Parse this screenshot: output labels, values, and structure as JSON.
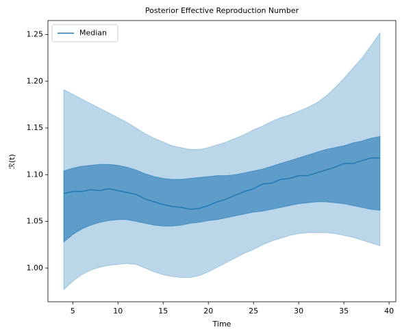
{
  "chart_data": {
    "type": "line",
    "title": "Posterior Effective Reproduction Number",
    "xlabel": "Time",
    "ylabel": "ℛ(t)",
    "x": [
      4,
      5,
      6,
      7,
      8,
      9,
      10,
      11,
      12,
      13,
      14,
      15,
      16,
      17,
      18,
      19,
      20,
      21,
      22,
      23,
      24,
      25,
      26,
      27,
      28,
      29,
      30,
      31,
      32,
      33,
      34,
      35,
      36,
      37,
      38,
      39
    ],
    "series": [
      {
        "name": "Median",
        "color": "#1f77b4",
        "values": [
          1.08,
          1.082,
          1.082,
          1.084,
          1.083,
          1.085,
          1.083,
          1.081,
          1.079,
          1.074,
          1.071,
          1.068,
          1.066,
          1.065,
          1.063,
          1.064,
          1.067,
          1.071,
          1.074,
          1.078,
          1.082,
          1.085,
          1.09,
          1.091,
          1.095,
          1.096,
          1.099,
          1.099,
          1.102,
          1.105,
          1.108,
          1.112,
          1.112,
          1.115,
          1.118,
          1.118
        ]
      }
    ],
    "bands": [
      {
        "color": "#1f77b4",
        "opacity": 0.3,
        "upper": [
          1.191,
          1.186,
          1.181,
          1.176,
          1.171,
          1.166,
          1.161,
          1.156,
          1.15,
          1.144,
          1.139,
          1.135,
          1.131,
          1.129,
          1.127,
          1.127,
          1.129,
          1.132,
          1.135,
          1.139,
          1.143,
          1.148,
          1.152,
          1.157,
          1.161,
          1.164,
          1.168,
          1.172,
          1.177,
          1.184,
          1.193,
          1.203,
          1.214,
          1.225,
          1.238,
          1.252
        ],
        "lower": [
          0.977,
          0.986,
          0.993,
          0.998,
          1.001,
          1.003,
          1.004,
          1.005,
          1.004,
          1.0,
          0.996,
          0.993,
          0.991,
          0.99,
          0.99,
          0.992,
          0.996,
          1.001,
          1.006,
          1.011,
          1.016,
          1.02,
          1.025,
          1.029,
          1.032,
          1.035,
          1.037,
          1.038,
          1.038,
          1.038,
          1.037,
          1.035,
          1.033,
          1.03,
          1.027,
          1.024
        ]
      },
      {
        "color": "#1f77b4",
        "opacity": 0.6,
        "upper": [
          1.104,
          1.107,
          1.109,
          1.11,
          1.111,
          1.111,
          1.11,
          1.108,
          1.105,
          1.101,
          1.098,
          1.096,
          1.095,
          1.095,
          1.096,
          1.097,
          1.098,
          1.099,
          1.099,
          1.1,
          1.102,
          1.104,
          1.106,
          1.109,
          1.112,
          1.115,
          1.118,
          1.121,
          1.124,
          1.127,
          1.129,
          1.131,
          1.134,
          1.136,
          1.139,
          1.141
        ],
        "lower": [
          1.028,
          1.036,
          1.042,
          1.046,
          1.049,
          1.051,
          1.052,
          1.052,
          1.05,
          1.048,
          1.046,
          1.045,
          1.045,
          1.046,
          1.048,
          1.049,
          1.051,
          1.052,
          1.054,
          1.056,
          1.058,
          1.06,
          1.061,
          1.063,
          1.065,
          1.067,
          1.069,
          1.07,
          1.071,
          1.071,
          1.07,
          1.069,
          1.067,
          1.065,
          1.063,
          1.062
        ]
      }
    ],
    "xlim": [
      2.25,
      40.75
    ],
    "ylim": [
      0.964,
      1.265
    ],
    "xticks": [
      5,
      10,
      15,
      20,
      25,
      30,
      35,
      40
    ],
    "yticks": [
      {
        "value": 1.0,
        "label": "1.00"
      },
      1.05,
      {
        "value": 1.1,
        "label": "1.10"
      },
      1.15,
      {
        "value": 1.2,
        "label": "1.20"
      },
      1.25
    ],
    "grid": false,
    "legend": "upper left"
  }
}
